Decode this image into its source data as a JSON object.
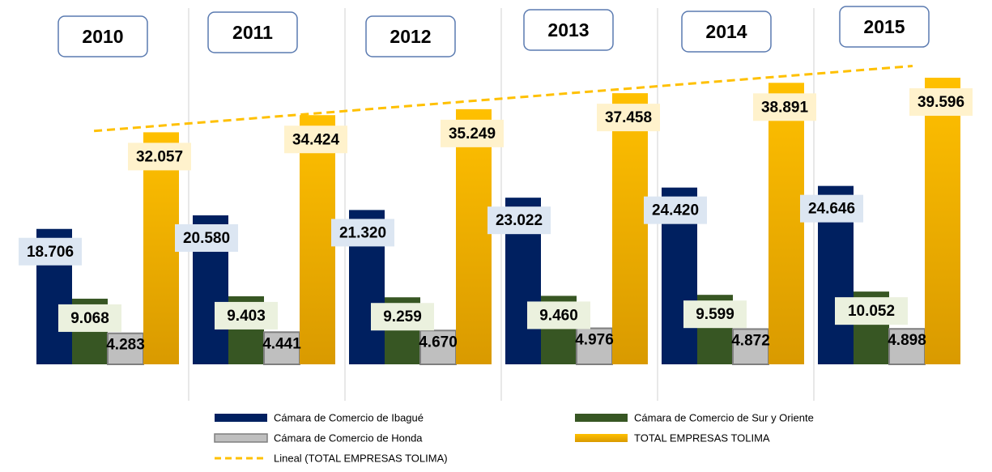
{
  "chart_data": {
    "type": "bar",
    "categories": [
      "2010",
      "2011",
      "2012",
      "2013",
      "2014",
      "2015"
    ],
    "series": [
      {
        "name": "Cámara de Comercio de Ibagué",
        "color": "#002060",
        "values": [
          18706,
          20580,
          21320,
          23022,
          24420,
          24646
        ],
        "value_labels": [
          "18.706",
          "20.580",
          "21.320",
          "23.022",
          "24.420",
          "24.646"
        ]
      },
      {
        "name": "Cámara de Comercio de Sur y Oriente",
        "color": "#375623",
        "values": [
          9068,
          9403,
          9259,
          9460,
          9599,
          10052
        ],
        "value_labels": [
          "9.068",
          "9.403",
          "9.259",
          "9.460",
          "9.599",
          "10.052"
        ]
      },
      {
        "name": "Cámara de Comercio de Honda",
        "color": "#bfbfbf",
        "values": [
          4283,
          4441,
          4670,
          4976,
          4872,
          4898
        ],
        "value_labels": [
          "4.283",
          "4.441",
          "4.670",
          "4.976",
          "4.872",
          "4.898"
        ]
      },
      {
        "name": "TOTAL EMPRESAS TOLIMA",
        "color": "#ffc000",
        "values": [
          32057,
          34424,
          35249,
          37458,
          38891,
          39596
        ],
        "value_labels": [
          "32.057",
          "34.424",
          "35.249",
          "37.458",
          "38.891",
          "39.596"
        ]
      }
    ],
    "trendline": {
      "name": "Lineal (TOTAL EMPRESAS TOLIMA)",
      "color": "#ffc000"
    }
  }
}
